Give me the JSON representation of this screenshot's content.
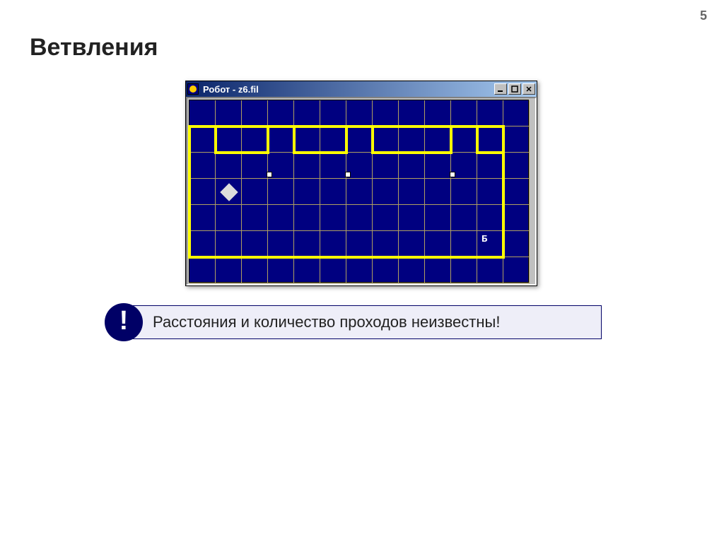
{
  "page_number": "5",
  "title": "Ветвления",
  "window": {
    "title": "Робот - z6.fil",
    "icon_bg": "#000080",
    "icon_face": "#ffcc00",
    "titlebar_gradient_from": "#0a246a",
    "titlebar_gradient_to": "#a6caf0",
    "buttons": {
      "minimize": "_",
      "maximize": "□",
      "close": "×"
    }
  },
  "grid": {
    "cols": 13,
    "rows": 7,
    "cell_size": 37,
    "bg_color": "#000080",
    "gridline_color": "#b0a060",
    "wall_color": "#ffff00",
    "wall_thickness": 4,
    "outer_rect": {
      "left_col": 0,
      "top_row": 1,
      "right_col": 12,
      "bottom_row": 6
    },
    "inner_top_row": 2,
    "gaps_after_cols": [
      3,
      6,
      10
    ],
    "robot": {
      "col": 1,
      "row": 3,
      "color": "#dcdcdc"
    },
    "markers": [
      {
        "col": 3,
        "row": 2
      },
      {
        "col": 6,
        "row": 2
      },
      {
        "col": 10,
        "row": 2
      }
    ],
    "goal": {
      "col": 11,
      "row": 5,
      "label": "Б",
      "color": "#ffffff"
    }
  },
  "info": {
    "badge": "!",
    "badge_bg": "#000066",
    "badge_fg": "#ffffff",
    "text": "Расстояния и количество проходов неизвестны!",
    "box_bg": "#eeeef8",
    "box_border": "#000066"
  }
}
